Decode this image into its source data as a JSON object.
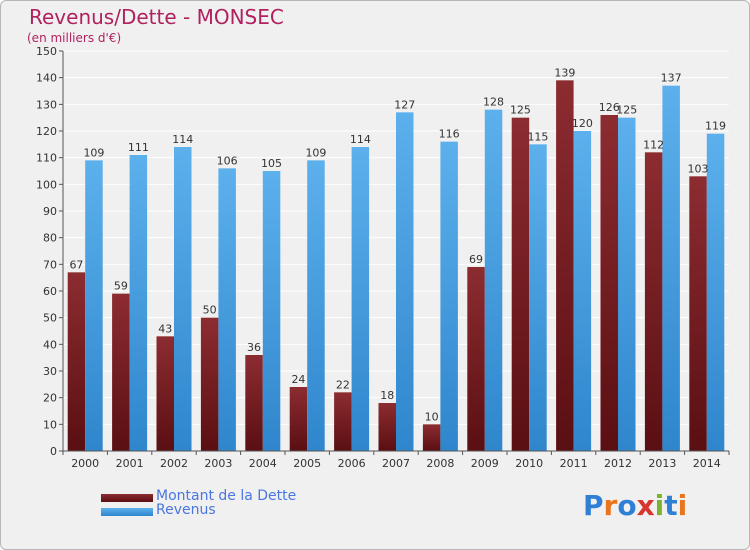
{
  "header": {
    "title": "Revenus/Dette - MONSEC",
    "subtitle": "(en milliers d'€)"
  },
  "legend": {
    "debt_label": "Montant de la Dette",
    "revenue_label": "Revenus"
  },
  "logo": {
    "text": "Proxiti",
    "letters": [
      "P",
      "r",
      "o",
      "x",
      "i",
      "t",
      "i"
    ],
    "letter_colors": [
      "#2f7fd6",
      "#e8741b",
      "#2f7fd6",
      "#d7352e",
      "#7bb32e",
      "#2f7fd6",
      "#e8741b"
    ]
  },
  "colors": {
    "debt": "#7a1f24",
    "revenue": "#4aa3e6",
    "accent": "#b0215f"
  },
  "chart_data": {
    "type": "bar",
    "categories": [
      "2000",
      "2001",
      "2002",
      "2003",
      "2004",
      "2005",
      "2006",
      "2007",
      "2008",
      "2009",
      "2010",
      "2011",
      "2012",
      "2013",
      "2014"
    ],
    "series": [
      {
        "name": "Montant de la Dette",
        "values": [
          67,
          59,
          43,
          50,
          36,
          24,
          22,
          18,
          10,
          69,
          125,
          139,
          126,
          112,
          103
        ]
      },
      {
        "name": "Revenus",
        "values": [
          109,
          111,
          114,
          106,
          105,
          109,
          114,
          127,
          116,
          128,
          115,
          120,
          125,
          137,
          119
        ]
      }
    ],
    "title": "Revenus/Dette - MONSEC",
    "subtitle": "(en milliers d'€)",
    "ylim": [
      0,
      150
    ],
    "yticks": [
      0,
      10,
      20,
      30,
      40,
      50,
      60,
      70,
      80,
      90,
      100,
      110,
      120,
      130,
      140,
      150
    ],
    "grid": true,
    "legend_position": "bottom-left"
  }
}
